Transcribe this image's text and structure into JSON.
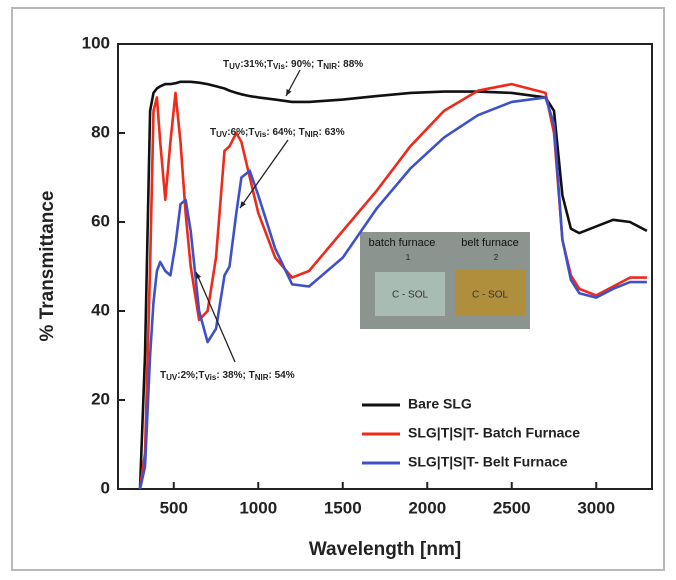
{
  "chart_data": {
    "type": "line",
    "xlabel": "Wavelength [nm]",
    "ylabel": "% Transmittance",
    "x": [
      300,
      330,
      360,
      380,
      400,
      420,
      450,
      480,
      510,
      540,
      570,
      600,
      650,
      700,
      750,
      800,
      830,
      870,
      900,
      950,
      1000,
      1100,
      1200,
      1300,
      1500,
      1700,
      1900,
      2100,
      2300,
      2500,
      2700,
      2750,
      2800,
      2850,
      2900,
      3000,
      3100,
      3200,
      3300
    ],
    "series": [
      {
        "name": "Bare SLG",
        "color": "#111111",
        "values": [
          0,
          30,
          85,
          89,
          90,
          90.5,
          91,
          91,
          91.2,
          91.5,
          91.5,
          91.5,
          91.3,
          91,
          90.5,
          90,
          89.5,
          89,
          88.7,
          88.3,
          88,
          87.5,
          87,
          87,
          87.5,
          88.3,
          89,
          89.3,
          89.3,
          89,
          88,
          85,
          66,
          58.5,
          57.5,
          59,
          60.5,
          60,
          58
        ]
      },
      {
        "name": "SLG|T|S|T- Batch Furnace",
        "color": "#ee2a1b",
        "values": [
          0,
          8,
          50,
          85,
          88,
          78,
          65,
          78,
          89,
          78,
          62,
          50,
          38,
          40,
          52,
          76,
          77,
          80,
          78,
          70,
          62,
          52,
          47.5,
          49,
          58,
          67,
          77,
          85,
          89.5,
          91,
          89,
          80,
          56,
          48,
          45,
          43.5,
          45.5,
          47.5,
          47.5
        ]
      },
      {
        "name": "SLG|T|S|T- Belt Furnace",
        "color": "#3f51c9",
        "values": [
          0,
          5,
          30,
          42,
          49,
          51,
          49,
          48,
          55,
          64,
          65,
          58,
          40,
          33,
          36,
          48,
          50,
          62,
          70,
          71.5,
          66,
          54,
          46,
          45.5,
          52,
          63,
          72,
          79,
          84,
          87,
          88,
          82,
          56,
          47,
          44,
          43,
          45,
          46.5,
          46.5
        ]
      }
    ],
    "xlim": [
      170,
      3330
    ],
    "xticks": [
      500,
      1000,
      1500,
      2000,
      2500,
      3000
    ],
    "ylim": [
      0,
      100
    ],
    "yticks": [
      0,
      20,
      40,
      60,
      80,
      100
    ],
    "legend": "lower right",
    "annotations": [
      {
        "parts": [
          "T",
          "UV",
          ":31%;T",
          "Vis",
          ": 90%; T",
          "NIR",
          ": 88%"
        ]
      },
      {
        "parts": [
          "T",
          "UV",
          ":6%;T",
          "Vis",
          ": 64%; T",
          "NIR",
          ": 63%"
        ]
      },
      {
        "parts": [
          "T",
          "UV",
          ":2%;T",
          "Vis",
          ": 38%; T",
          "NIR",
          ": 54%"
        ]
      }
    ],
    "inset": {
      "labels": [
        "batch furnace",
        "belt furnace"
      ],
      "numbers": [
        "1",
        "2"
      ],
      "samples": [
        "C - SOL",
        "C - SOL"
      ]
    }
  }
}
